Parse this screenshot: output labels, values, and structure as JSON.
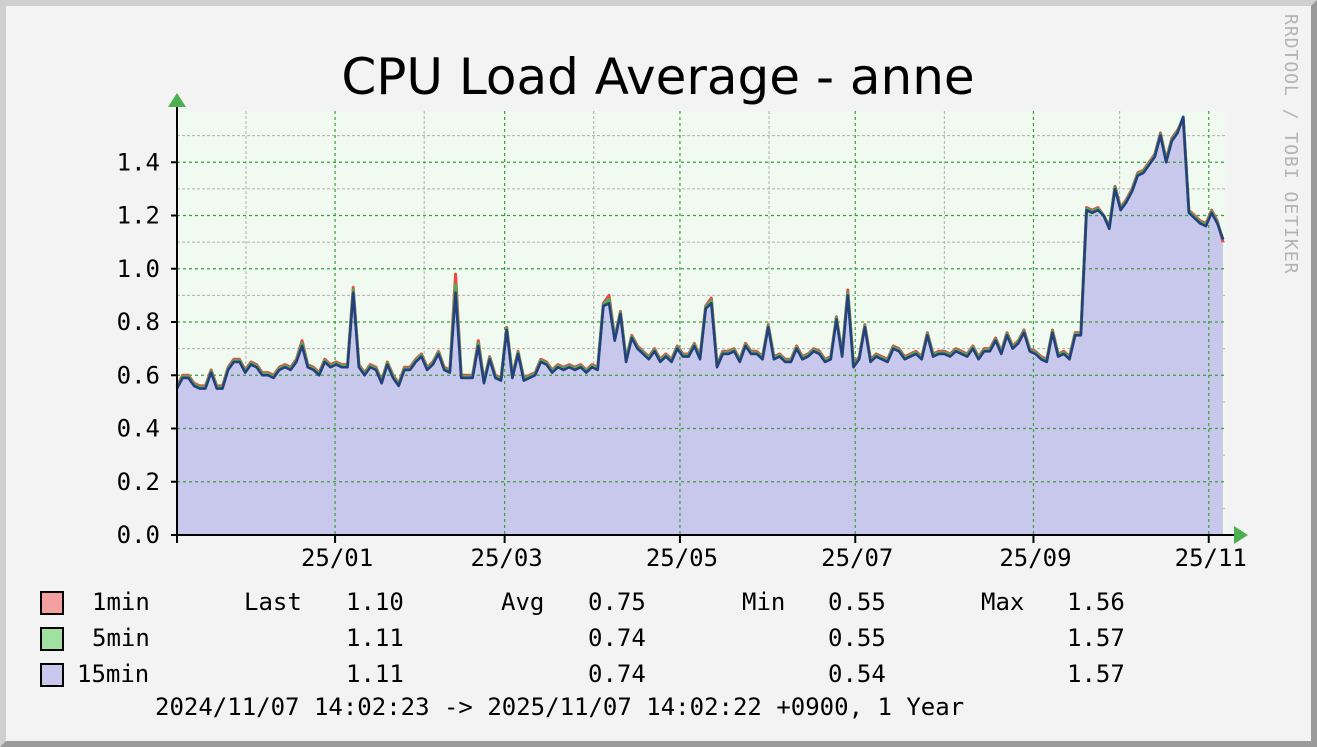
{
  "chart_data": {
    "type": "area",
    "title": "CPU Load Average - anne",
    "xlabel": "",
    "ylabel": "",
    "ylim": [
      0,
      1.6
    ],
    "yticks": [
      "0.0",
      "0.2",
      "0.4",
      "0.6",
      "0.8",
      "1.0",
      "1.2",
      "1.4"
    ],
    "xtick_labels": [
      "25/01",
      "25/03",
      "25/05",
      "25/07",
      "25/09",
      "25/11"
    ],
    "x_start": "2024-11-07",
    "x_end": "2025-11-07",
    "grid": true,
    "series": [
      {
        "name": "1min",
        "color": "#e84a4a",
        "values": [
          0.56,
          0.6,
          0.6,
          0.57,
          0.56,
          0.56,
          0.62,
          0.56,
          0.56,
          0.63,
          0.66,
          0.66,
          0.62,
          0.65,
          0.64,
          0.61,
          0.61,
          0.6,
          0.63,
          0.64,
          0.63,
          0.66,
          0.73,
          0.64,
          0.63,
          0.61,
          0.66,
          0.64,
          0.65,
          0.64,
          0.64,
          0.93,
          0.64,
          0.61,
          0.64,
          0.63,
          0.58,
          0.65,
          0.6,
          0.57,
          0.63,
          0.63,
          0.66,
          0.68,
          0.63,
          0.65,
          0.69,
          0.63,
          0.62,
          0.98,
          0.6,
          0.6,
          0.6,
          0.73,
          0.58,
          0.67,
          0.6,
          0.59,
          0.78,
          0.6,
          0.69,
          0.59,
          0.6,
          0.61,
          0.66,
          0.65,
          0.62,
          0.64,
          0.63,
          0.64,
          0.63,
          0.64,
          0.62,
          0.64,
          0.63,
          0.87,
          0.9,
          0.74,
          0.84,
          0.66,
          0.75,
          0.71,
          0.69,
          0.67,
          0.7,
          0.66,
          0.68,
          0.66,
          0.71,
          0.68,
          0.68,
          0.72,
          0.67,
          0.86,
          0.89,
          0.64,
          0.69,
          0.69,
          0.7,
          0.66,
          0.72,
          0.69,
          0.69,
          0.67,
          0.79,
          0.67,
          0.68,
          0.66,
          0.66,
          0.71,
          0.67,
          0.68,
          0.7,
          0.69,
          0.66,
          0.67,
          0.82,
          0.68,
          0.92,
          0.64,
          0.67,
          0.79,
          0.66,
          0.68,
          0.67,
          0.66,
          0.71,
          0.7,
          0.67,
          0.68,
          0.69,
          0.67,
          0.76,
          0.68,
          0.69,
          0.69,
          0.68,
          0.7,
          0.69,
          0.68,
          0.71,
          0.67,
          0.7,
          0.7,
          0.74,
          0.69,
          0.76,
          0.71,
          0.73,
          0.77,
          0.7,
          0.69,
          0.67,
          0.66,
          0.77,
          0.68,
          0.69,
          0.67,
          0.76,
          0.76,
          1.23,
          1.22,
          1.23,
          1.2,
          1.16,
          1.31,
          1.23,
          1.26,
          1.3,
          1.36,
          1.37,
          1.4,
          1.43,
          1.51,
          1.41,
          1.49,
          1.52,
          1.56,
          1.22,
          1.2,
          1.18,
          1.17,
          1.22,
          1.18,
          1.1
        ]
      },
      {
        "name": "5min",
        "color": "#4caf50",
        "values": [
          0.555,
          0.595,
          0.595,
          0.565,
          0.555,
          0.555,
          0.615,
          0.555,
          0.555,
          0.625,
          0.655,
          0.655,
          0.615,
          0.645,
          0.635,
          0.605,
          0.605,
          0.595,
          0.625,
          0.635,
          0.625,
          0.655,
          0.72,
          0.635,
          0.625,
          0.605,
          0.655,
          0.635,
          0.645,
          0.635,
          0.635,
          0.92,
          0.635,
          0.605,
          0.635,
          0.625,
          0.575,
          0.645,
          0.595,
          0.565,
          0.625,
          0.625,
          0.655,
          0.675,
          0.625,
          0.645,
          0.685,
          0.625,
          0.615,
          0.94,
          0.595,
          0.595,
          0.595,
          0.72,
          0.575,
          0.665,
          0.595,
          0.585,
          0.775,
          0.595,
          0.685,
          0.585,
          0.595,
          0.605,
          0.655,
          0.645,
          0.615,
          0.635,
          0.625,
          0.635,
          0.625,
          0.635,
          0.615,
          0.635,
          0.625,
          0.865,
          0.885,
          0.735,
          0.835,
          0.655,
          0.745,
          0.705,
          0.685,
          0.665,
          0.695,
          0.655,
          0.675,
          0.655,
          0.705,
          0.675,
          0.675,
          0.715,
          0.665,
          0.855,
          0.88,
          0.635,
          0.685,
          0.685,
          0.695,
          0.655,
          0.715,
          0.685,
          0.685,
          0.665,
          0.785,
          0.665,
          0.675,
          0.655,
          0.655,
          0.705,
          0.665,
          0.675,
          0.695,
          0.685,
          0.655,
          0.665,
          0.815,
          0.675,
          0.91,
          0.635,
          0.665,
          0.785,
          0.655,
          0.675,
          0.665,
          0.655,
          0.705,
          0.695,
          0.665,
          0.675,
          0.685,
          0.665,
          0.755,
          0.675,
          0.685,
          0.685,
          0.675,
          0.695,
          0.685,
          0.675,
          0.705,
          0.665,
          0.695,
          0.695,
          0.735,
          0.685,
          0.755,
          0.705,
          0.725,
          0.765,
          0.695,
          0.685,
          0.665,
          0.655,
          0.765,
          0.675,
          0.685,
          0.665,
          0.755,
          0.755,
          1.225,
          1.215,
          1.225,
          1.2,
          1.155,
          1.305,
          1.225,
          1.255,
          1.295,
          1.355,
          1.365,
          1.395,
          1.425,
          1.505,
          1.405,
          1.485,
          1.515,
          1.57,
          1.215,
          1.195,
          1.175,
          1.165,
          1.215,
          1.175,
          1.11
        ]
      },
      {
        "name": "15min",
        "color": "#24407e",
        "values": [
          0.55,
          0.59,
          0.59,
          0.56,
          0.55,
          0.55,
          0.61,
          0.55,
          0.55,
          0.62,
          0.65,
          0.65,
          0.61,
          0.64,
          0.63,
          0.6,
          0.6,
          0.59,
          0.62,
          0.63,
          0.62,
          0.65,
          0.71,
          0.63,
          0.62,
          0.6,
          0.65,
          0.63,
          0.64,
          0.63,
          0.63,
          0.91,
          0.63,
          0.6,
          0.63,
          0.62,
          0.57,
          0.64,
          0.59,
          0.56,
          0.62,
          0.62,
          0.65,
          0.67,
          0.62,
          0.64,
          0.68,
          0.62,
          0.61,
          0.91,
          0.59,
          0.59,
          0.59,
          0.71,
          0.57,
          0.66,
          0.59,
          0.58,
          0.77,
          0.59,
          0.68,
          0.58,
          0.59,
          0.6,
          0.65,
          0.64,
          0.61,
          0.63,
          0.62,
          0.63,
          0.62,
          0.63,
          0.61,
          0.63,
          0.62,
          0.86,
          0.87,
          0.73,
          0.83,
          0.65,
          0.74,
          0.7,
          0.68,
          0.66,
          0.69,
          0.65,
          0.67,
          0.65,
          0.7,
          0.67,
          0.67,
          0.71,
          0.66,
          0.85,
          0.87,
          0.63,
          0.68,
          0.68,
          0.69,
          0.65,
          0.71,
          0.68,
          0.68,
          0.66,
          0.78,
          0.66,
          0.67,
          0.65,
          0.65,
          0.7,
          0.66,
          0.67,
          0.69,
          0.68,
          0.65,
          0.66,
          0.81,
          0.67,
          0.9,
          0.63,
          0.66,
          0.78,
          0.65,
          0.67,
          0.66,
          0.65,
          0.7,
          0.69,
          0.66,
          0.67,
          0.68,
          0.66,
          0.75,
          0.67,
          0.68,
          0.68,
          0.67,
          0.69,
          0.68,
          0.67,
          0.7,
          0.66,
          0.69,
          0.69,
          0.73,
          0.68,
          0.75,
          0.7,
          0.72,
          0.76,
          0.69,
          0.68,
          0.66,
          0.65,
          0.76,
          0.67,
          0.68,
          0.66,
          0.75,
          0.75,
          1.22,
          1.21,
          1.22,
          1.2,
          1.15,
          1.3,
          1.22,
          1.25,
          1.29,
          1.35,
          1.36,
          1.39,
          1.42,
          1.5,
          1.4,
          1.48,
          1.51,
          1.57,
          1.21,
          1.19,
          1.17,
          1.16,
          1.21,
          1.17,
          1.11
        ]
      }
    ],
    "area_fill": "#c8c8ec",
    "legend": [
      {
        "name": "1min",
        "swatch": "#f4a0a0",
        "last": "1.10",
        "avg": "0.75",
        "min": "0.55",
        "max": "1.56"
      },
      {
        "name": "5min",
        "swatch": "#a0e0a0",
        "last": "1.11",
        "avg": "0.74",
        "min": "0.55",
        "max": "1.57"
      },
      {
        "name": "15min",
        "swatch": "#c8c8ec",
        "last": "1.11",
        "avg": "0.74",
        "min": "0.54",
        "max": "1.57"
      }
    ],
    "legend_headers": {
      "last": "Last",
      "avg": "Avg",
      "min": "Min",
      "max": "Max"
    }
  },
  "time_range": "2024/11/07 14:02:23 -> 2025/11/07 14:02:22 +0900, 1 Year",
  "watermark": "RRDTOOL / TOBI OETIKER"
}
